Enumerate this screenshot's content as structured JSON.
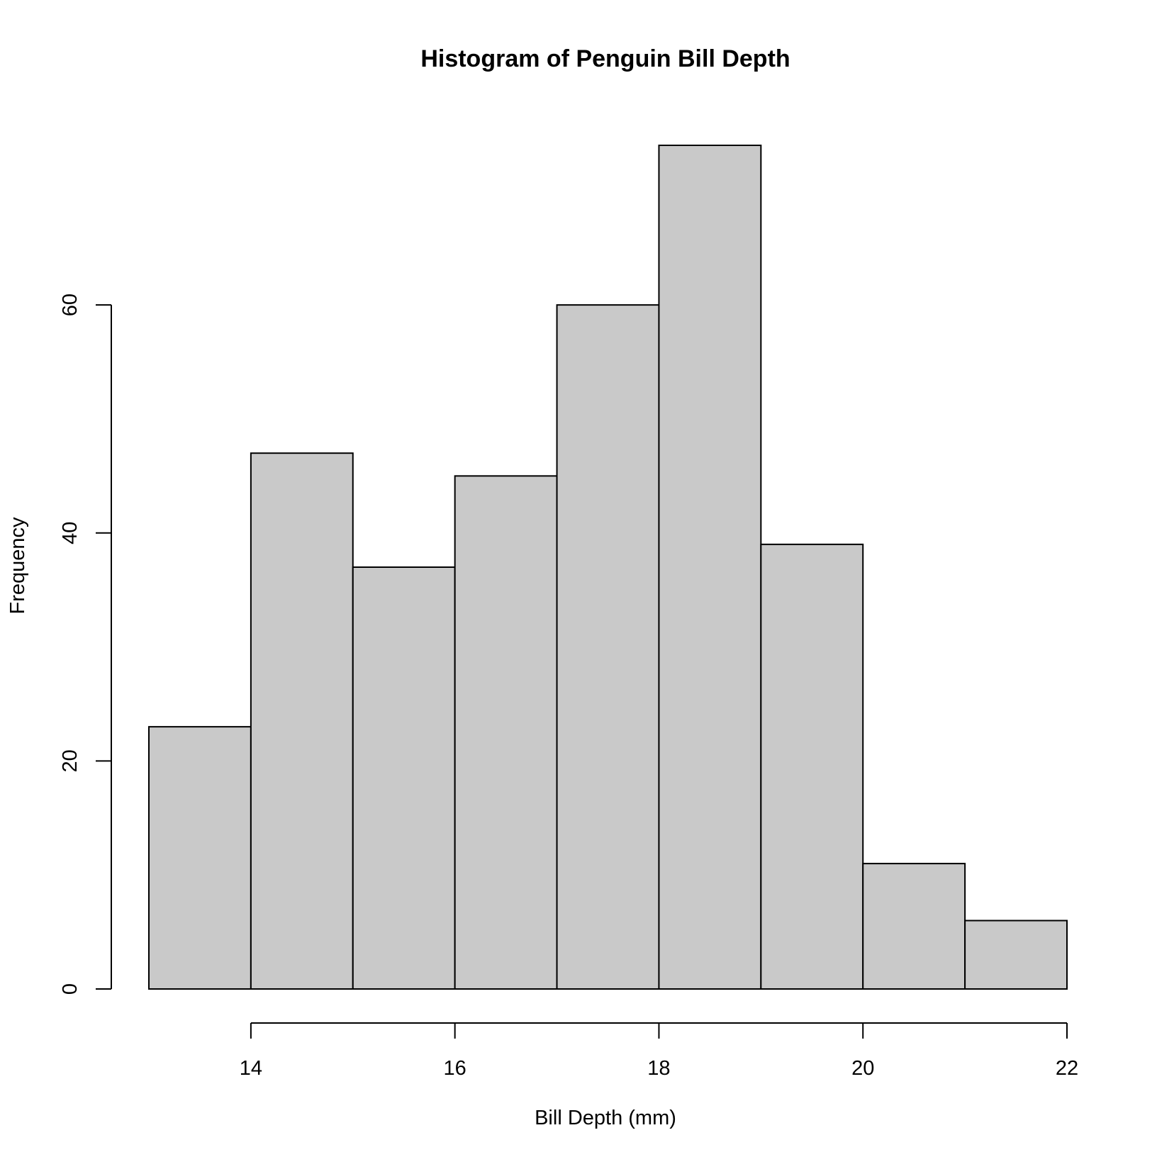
{
  "chart_data": {
    "type": "bar",
    "subtype": "histogram",
    "title": "Histogram of Penguin Bill Depth",
    "xlabel": "Bill Depth (mm)",
    "ylabel": "Frequency",
    "bins": [
      {
        "start": 13,
        "end": 14,
        "count": 23
      },
      {
        "start": 14,
        "end": 15,
        "count": 47
      },
      {
        "start": 15,
        "end": 16,
        "count": 37
      },
      {
        "start": 16,
        "end": 17,
        "count": 45
      },
      {
        "start": 17,
        "end": 18,
        "count": 60
      },
      {
        "start": 18,
        "end": 19,
        "count": 74
      },
      {
        "start": 19,
        "end": 20,
        "count": 39
      },
      {
        "start": 20,
        "end": 21,
        "count": 11
      },
      {
        "start": 21,
        "end": 22,
        "count": 6
      }
    ],
    "xlim": [
      13,
      22
    ],
    "ylim": [
      0,
      74
    ],
    "x_ticks": [
      14,
      16,
      18,
      20,
      22
    ],
    "y_ticks": [
      0,
      20,
      40,
      60
    ],
    "grid": false,
    "legend": "none",
    "bar_fill": "#c9c9c9",
    "bar_stroke": "#000000"
  }
}
